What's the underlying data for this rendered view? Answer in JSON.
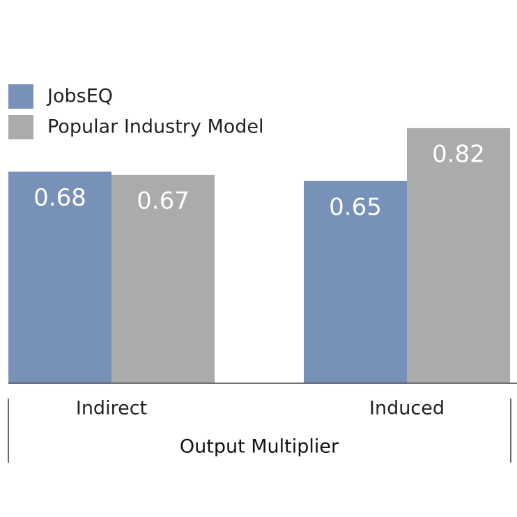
{
  "chart_data": {
    "type": "bar",
    "categories": [
      "Indirect",
      "Induced"
    ],
    "x_label": "Output Multiplier",
    "series": [
      {
        "name": "JobsEQ",
        "color": "#7891b8",
        "values": [
          0.68,
          0.65
        ]
      },
      {
        "name": "Popular Industry Model",
        "color": "#a9abac",
        "values": [
          0.67,
          0.82
        ]
      }
    ]
  }
}
